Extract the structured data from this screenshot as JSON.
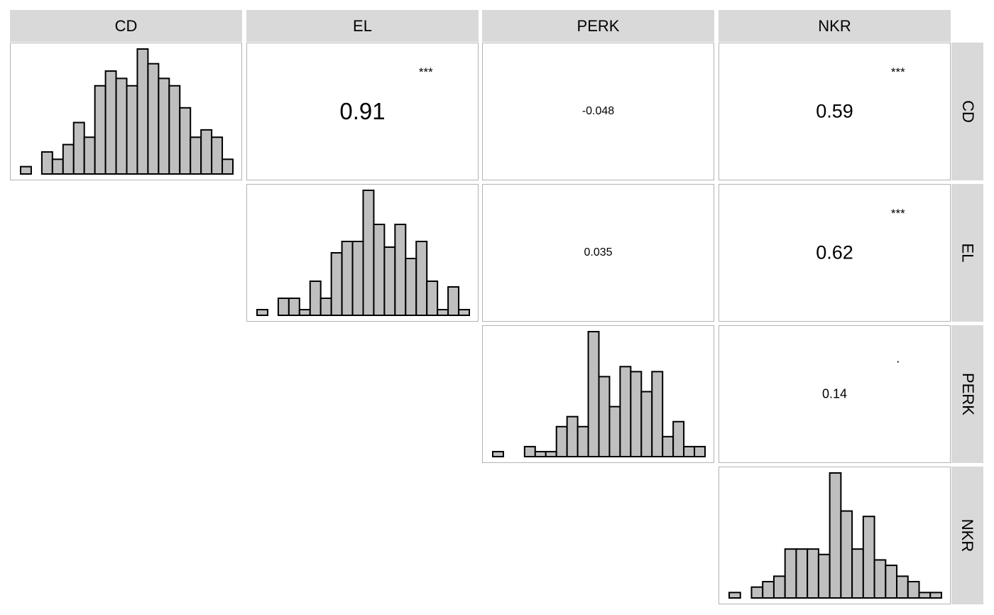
{
  "variables": [
    "CD",
    "EL",
    "PERK",
    "NKR"
  ],
  "colors": {
    "strip": "#d9d9d9",
    "bar_fill": "#bfbfbf",
    "bar_stroke": "#000000",
    "panel_border": "#b3b3b3"
  },
  "chart_data": {
    "type": "correlation-matrix",
    "variables": [
      "CD",
      "EL",
      "PERK",
      "NKR"
    ],
    "histograms": [
      {
        "variable": "CD",
        "counts": [
          1,
          0,
          3,
          2,
          4,
          7,
          5,
          12,
          14,
          13,
          12,
          17,
          15,
          13,
          12,
          9,
          5,
          6,
          5,
          2
        ]
      },
      {
        "variable": "EL",
        "counts": [
          1,
          0,
          3,
          3,
          1,
          6,
          3,
          11,
          13,
          13,
          22,
          16,
          12,
          16,
          10,
          13,
          6,
          1,
          5,
          1
        ]
      },
      {
        "variable": "PERK",
        "counts": [
          1,
          0,
          0,
          2,
          1,
          1,
          6,
          8,
          6,
          25,
          16,
          10,
          18,
          17,
          13,
          17,
          4,
          7,
          2,
          2
        ]
      },
      {
        "variable": "NKR",
        "counts": [
          1,
          0,
          2,
          3,
          4,
          9,
          9,
          9,
          8,
          23,
          16,
          9,
          15,
          7,
          6,
          4,
          3,
          1,
          1
        ]
      }
    ],
    "correlations": [
      {
        "row": "CD",
        "col": "EL",
        "value": "0.91",
        "stars": "***"
      },
      {
        "row": "CD",
        "col": "PERK",
        "value": "-0.048",
        "stars": ""
      },
      {
        "row": "CD",
        "col": "NKR",
        "value": "0.59",
        "stars": "***"
      },
      {
        "row": "EL",
        "col": "PERK",
        "value": "0.035",
        "stars": ""
      },
      {
        "row": "EL",
        "col": "NKR",
        "value": "0.62",
        "stars": "***"
      },
      {
        "row": "PERK",
        "col": "NKR",
        "value": "0.14",
        "stars": "."
      }
    ]
  }
}
